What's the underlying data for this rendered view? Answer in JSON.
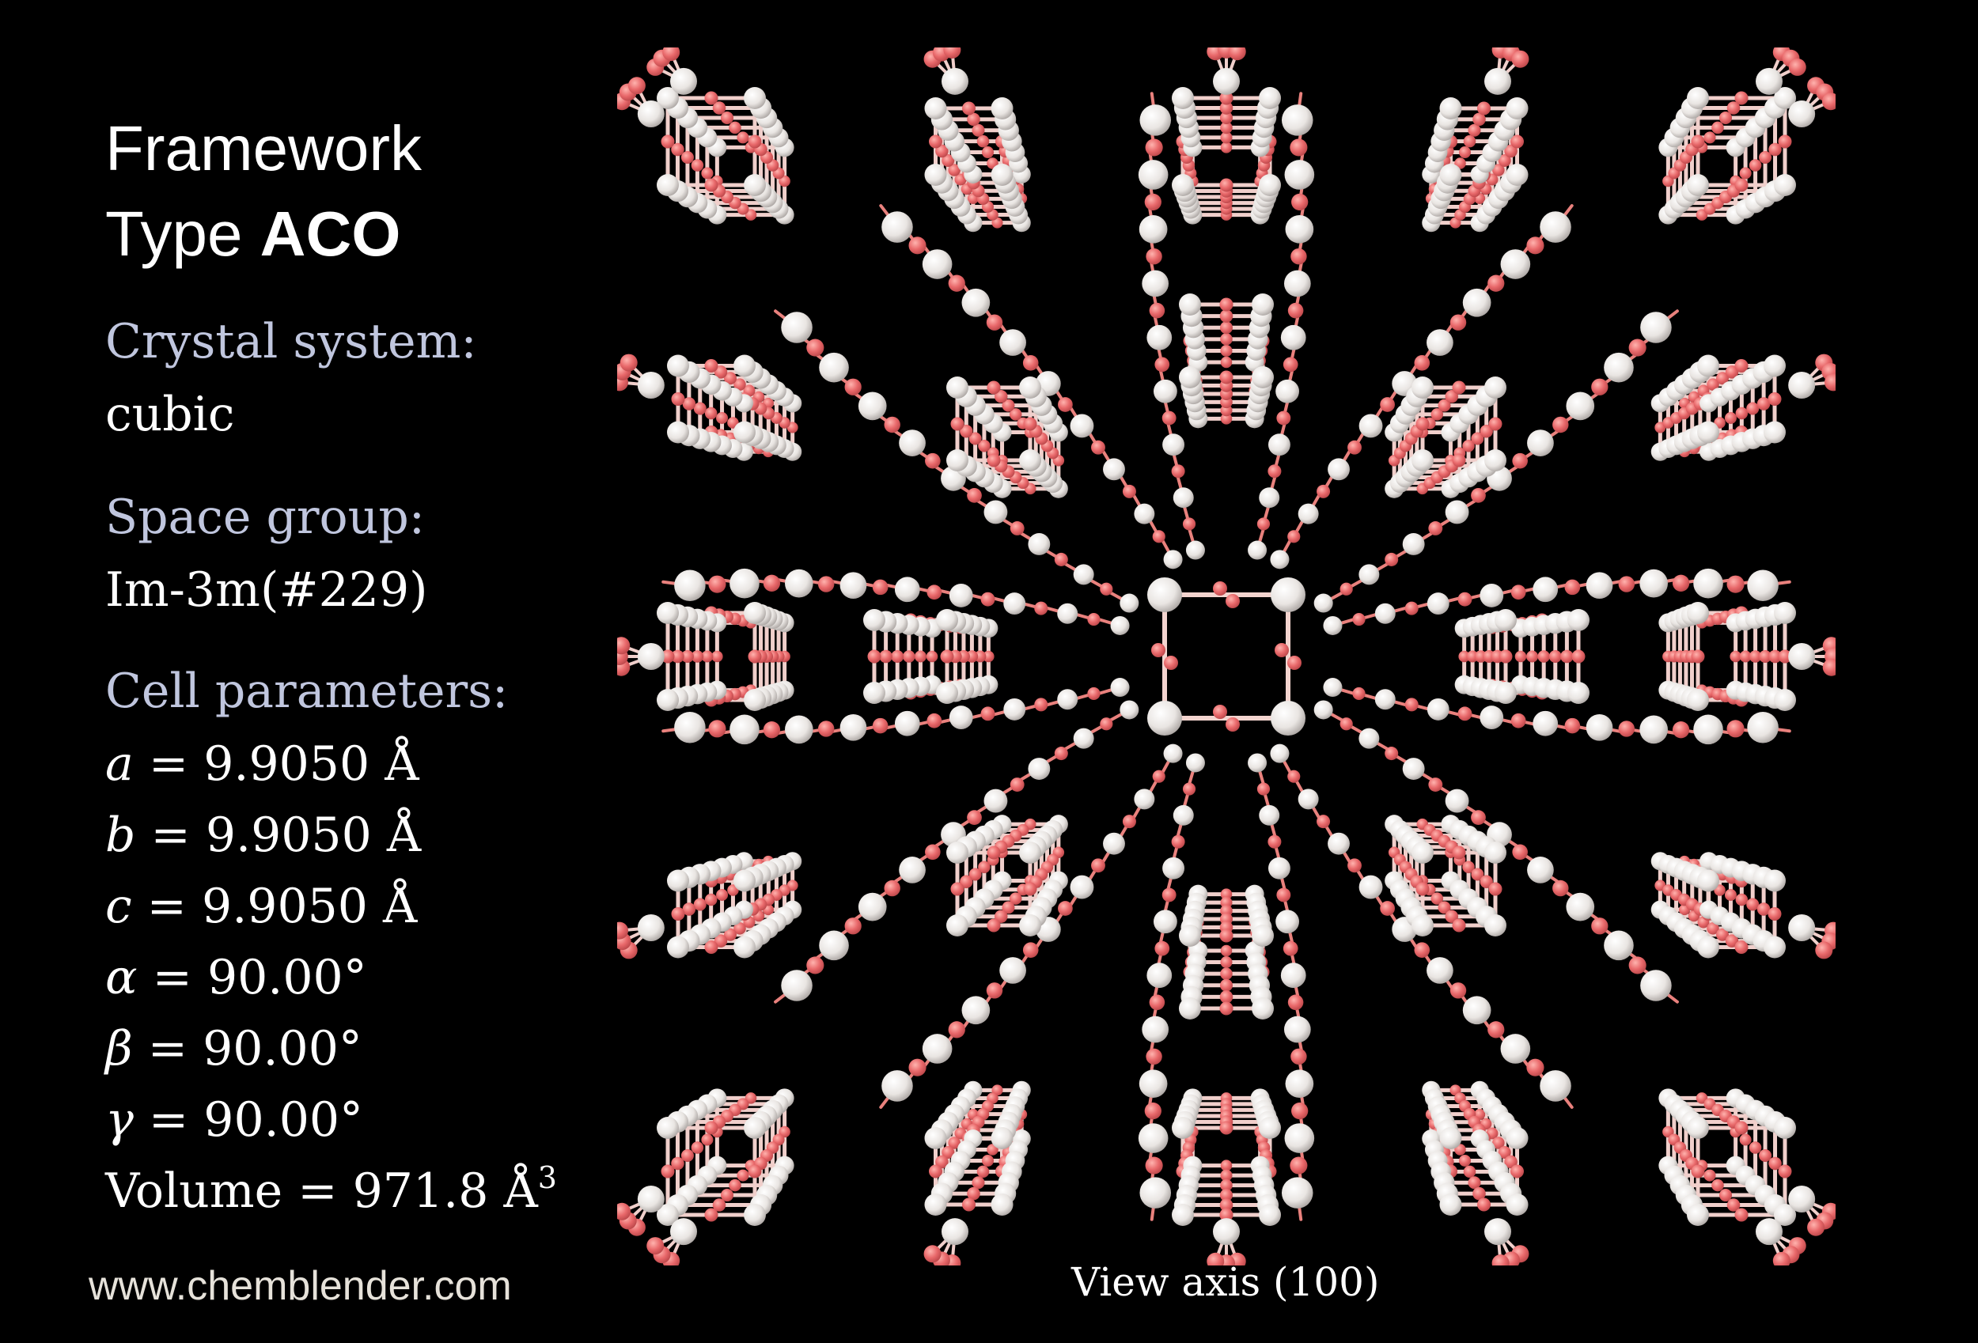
{
  "title": {
    "line1": "Framework",
    "line2_prefix": "Type",
    "line2_bold": "ACO"
  },
  "crystal_system": {
    "label": "Crystal system:",
    "value": "cubic"
  },
  "space_group": {
    "label": "Space group:",
    "value": "Im-3m(#229)"
  },
  "cell_parameters": {
    "label": "Cell parameters:",
    "items": [
      {
        "symbol": "a",
        "text": " = 9.9050 Å"
      },
      {
        "symbol": "b",
        "text": " = 9.9050 Å"
      },
      {
        "symbol": "c",
        "text": " = 9.9050 Å"
      },
      {
        "symbol": "α",
        "text": " = 90.00°"
      },
      {
        "symbol": "β",
        "text": " = 90.00°"
      },
      {
        "symbol": "γ",
        "text": " = 90.00°"
      }
    ],
    "volume": {
      "text": "Volume = 971.8 Å",
      "sup": "3"
    }
  },
  "website": "www.chemblender.com",
  "view_axis": "View axis (100)",
  "colors": {
    "background": "#000000",
    "oxygen": "#e8686a",
    "tetrahedral_atom": "#e9e5e2",
    "bond": "#f0d8d4",
    "heading": "#c0c6de"
  }
}
